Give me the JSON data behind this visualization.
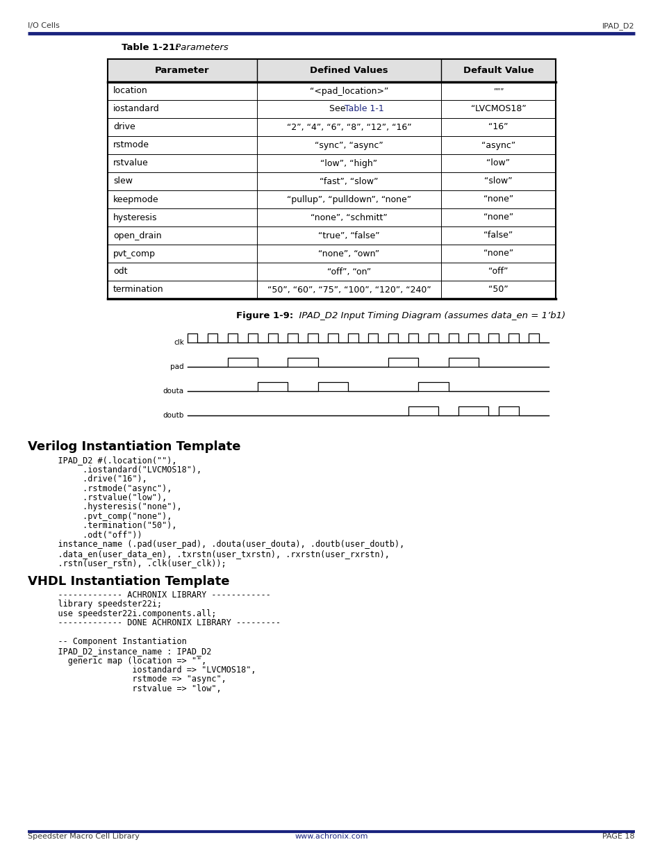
{
  "page_bg": "#ffffff",
  "header_left": "I/O Cells",
  "header_right": "IPAD_D2",
  "header_line_color": "#1a237e",
  "footer_left": "Speedster Macro Cell Library",
  "footer_center": "www.achronix.com",
  "footer_right": "PAGE 18",
  "footer_line_color": "#1a237e",
  "table_title_bold": "Table 1-21:",
  "table_title_italic": " Parameters",
  "table_headers": [
    "Parameter",
    "Defined Values",
    "Default Value"
  ],
  "table_rows": [
    [
      "location",
      "“<pad_location>”",
      "“””"
    ],
    [
      "iostandard",
      "See Table 1-1",
      "“LVCMOS18”"
    ],
    [
      "drive",
      "“2”, “4”, “6”, “8”, “12”, “16”",
      "“16”"
    ],
    [
      "rstmode",
      "“sync”, “async”",
      "“async”"
    ],
    [
      "rstvalue",
      "“low”, “high”",
      "“low”"
    ],
    [
      "slew",
      "“fast”, “slow”",
      "“slow”"
    ],
    [
      "keepmode",
      "“pullup”, “pulldown”, “none”",
      "“none”"
    ],
    [
      "hysteresis",
      "“none”, “schmitt”",
      "“none”"
    ],
    [
      "open_drain",
      "“true”, “false”",
      "“false”"
    ],
    [
      "pvt_comp",
      "“none”, “own”",
      "“none”"
    ],
    [
      "odt",
      "“off”, “on”",
      "“off”"
    ],
    [
      "termination",
      "“50”, “60”, “75”, “100”, “120”, “240”",
      "“50”"
    ]
  ],
  "iostandard_link_color": "#1a237e",
  "figure_caption_bold": "Figure 1-9:",
  "figure_caption_italic": "  IPAD_D2 Input Timing Diagram (assumes data_en = 1’b1)",
  "verilog_title": "Verilog Instantiation Template",
  "verilog_lines": [
    "    IPAD_D2 #(.location(\"\"),",
    "         .iostandard(\"LVCMOS18\"),",
    "         .drive(\"16\"),",
    "         .rstmode(\"async\"),",
    "         .rstvalue(\"low\"),",
    "         .hysteresis(\"none\"),",
    "         .pvt_comp(\"none\"),",
    "         .termination(\"50\"),",
    "         .odt(\"off\"))",
    "    instance_name (.pad(user_pad), .douta(user_douta), .doutb(user_doutb),",
    "    .data_en(user_data_en), .txrstn(user_txrstn), .rxrstn(user_rxrstn),",
    "    .rstn(user_rstn), .clk(user_clk));"
  ],
  "vhdl_title": "VHDL Instantiation Template",
  "vhdl_lines": [
    "    ------------- ACHRONIX LIBRARY ------------",
    "    library speedster22i;",
    "    use speedster22i.components.all;",
    "    ------------- DONE ACHRONIX LIBRARY ---------",
    "",
    "    -- Component Instantiation",
    "    IPAD_D2_instance_name : IPAD_D2",
    "      generic map (location => \"\",",
    "                   iostandard => \"LVCMOS18\",",
    "                   rstmode => \"async\",",
    "                   rstvalue => \"low\","
  ]
}
